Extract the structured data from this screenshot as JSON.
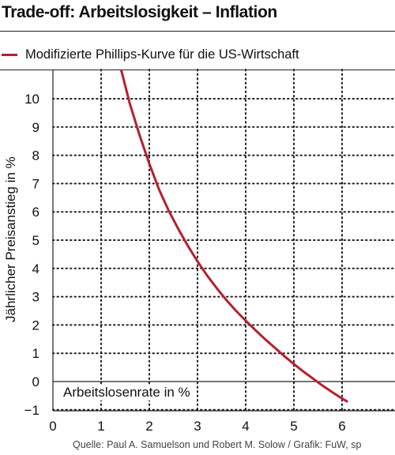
{
  "header": {
    "title": "Trade-off: Arbeitslosigkeit – Inflation"
  },
  "legend": {
    "label": "Modifizierte Phillips-Kurve für die US-Wirtschaft"
  },
  "source": "Quelle: Paul A. Samuelson und Robert M. Solow / Grafik: FuW, sp",
  "colors": {
    "curve": "#b5202e",
    "grid": "#222222",
    "text": "#111111"
  },
  "chart_data": {
    "type": "line",
    "title": "Trade-off: Arbeitslosigkeit – Inflation",
    "xlabel": "Arbeitslosenrate in %",
    "ylabel": "Jährlicher Preisanstieg in %",
    "xlim": [
      0,
      7
    ],
    "ylim": [
      -1,
      11
    ],
    "x_ticks": [
      0,
      1,
      2,
      3,
      4,
      5,
      6
    ],
    "y_ticks": [
      -1,
      0,
      1,
      2,
      3,
      4,
      5,
      6,
      7,
      8,
      9,
      10
    ],
    "grid": true,
    "legend_position": "top",
    "series": [
      {
        "name": "Modifizierte Phillips-Kurve für die US-Wirtschaft",
        "x": [
          1.42,
          1.6,
          1.8,
          2.0,
          2.2,
          2.4,
          2.6,
          2.8,
          3.0,
          3.2,
          3.4,
          3.6,
          3.8,
          4.0,
          4.2,
          4.4,
          4.6,
          4.8,
          5.0,
          5.2,
          5.4,
          5.6,
          5.8,
          6.0,
          6.1
        ],
        "values": [
          11.0,
          9.8,
          8.7,
          7.7,
          6.8,
          6.05,
          5.4,
          4.8,
          4.25,
          3.75,
          3.3,
          2.88,
          2.5,
          2.15,
          1.82,
          1.5,
          1.2,
          0.9,
          0.62,
          0.35,
          0.1,
          -0.15,
          -0.38,
          -0.6,
          -0.7
        ]
      }
    ]
  }
}
